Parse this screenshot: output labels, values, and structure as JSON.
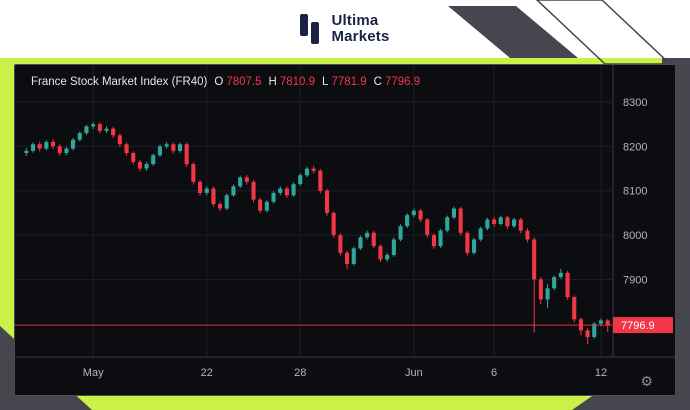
{
  "brand": {
    "line1": "Ultima",
    "line2": "Markets"
  },
  "legend": {
    "title": "France Stock Market Index (FR40)",
    "open_label": "O",
    "open": "7807.5",
    "high_label": "H",
    "high": "7810.9",
    "low_label": "L",
    "low": "7781.9",
    "close_label": "C",
    "close": "7796.9"
  },
  "icons": {
    "gear": "⚙"
  },
  "colors": {
    "up": "#2fa79c",
    "down": "#f23645",
    "accent_red": "#f23645",
    "axis_text": "#b2b5be",
    "grid": "#1b1e26",
    "axis_line": "#363a45",
    "panel_bg": "#0c0d10",
    "background_lime": "#c9f148",
    "decor_gray": "#46464e",
    "brand_navy": "#1b2446"
  },
  "chart_data": {
    "type": "candlestick",
    "title": "France Stock Market Index (FR40)",
    "symbol": "FR40",
    "last_price": 7796.9,
    "last_ohlc": {
      "open": 7807.5,
      "high": 7810.9,
      "low": 7781.9,
      "close": 7796.9
    },
    "ylim": [
      7725,
      8370
    ],
    "y_ticks": [
      8300,
      8200,
      8100,
      8000,
      7900
    ],
    "x_ticks": [
      {
        "index": 10,
        "label": "May"
      },
      {
        "index": 27,
        "label": "22"
      },
      {
        "index": 41,
        "label": "28"
      },
      {
        "index": 58,
        "label": "Jun"
      },
      {
        "index": 70,
        "label": "6"
      },
      {
        "index": 86,
        "label": "12"
      }
    ],
    "candles": [
      [
        8185,
        8196,
        8178,
        8190
      ],
      [
        8190,
        8209,
        8186,
        8205
      ],
      [
        8205,
        8211,
        8189,
        8195
      ],
      [
        8195,
        8214,
        8191,
        8210
      ],
      [
        8210,
        8216,
        8194,
        8200
      ],
      [
        8200,
        8205,
        8179,
        8185
      ],
      [
        8185,
        8199,
        8180,
        8195
      ],
      [
        8195,
        8219,
        8191,
        8215
      ],
      [
        8215,
        8234,
        8211,
        8230
      ],
      [
        8230,
        8249,
        8226,
        8245
      ],
      [
        8245,
        8255,
        8239,
        8250
      ],
      [
        8250,
        8254,
        8229,
        8235
      ],
      [
        8235,
        8245,
        8230,
        8240
      ],
      [
        8240,
        8244,
        8219,
        8225
      ],
      [
        8225,
        8229,
        8199,
        8205
      ],
      [
        8205,
        8209,
        8179,
        8185
      ],
      [
        8185,
        8189,
        8159,
        8165
      ],
      [
        8165,
        8169,
        8144,
        8150
      ],
      [
        8150,
        8165,
        8145,
        8160
      ],
      [
        8160,
        8184,
        8156,
        8180
      ],
      [
        8180,
        8204,
        8176,
        8200
      ],
      [
        8200,
        8210,
        8195,
        8205
      ],
      [
        8205,
        8209,
        8184,
        8190
      ],
      [
        8190,
        8209,
        8186,
        8205
      ],
      [
        8205,
        8209,
        8154,
        8160
      ],
      [
        8160,
        8164,
        8114,
        8120
      ],
      [
        8120,
        8124,
        8089,
        8095
      ],
      [
        8095,
        8110,
        8090,
        8105
      ],
      [
        8105,
        8109,
        8064,
        8070
      ],
      [
        8070,
        8075,
        8054,
        8060
      ],
      [
        8060,
        8094,
        8056,
        8090
      ],
      [
        8090,
        8114,
        8086,
        8110
      ],
      [
        8110,
        8134,
        8106,
        8130
      ],
      [
        8130,
        8135,
        8114,
        8120
      ],
      [
        8120,
        8124,
        8074,
        8080
      ],
      [
        8080,
        8084,
        8049,
        8055
      ],
      [
        8055,
        8079,
        8051,
        8075
      ],
      [
        8075,
        8099,
        8071,
        8095
      ],
      [
        8095,
        8110,
        8090,
        8105
      ],
      [
        8105,
        8109,
        8084,
        8090
      ],
      [
        8090,
        8119,
        8086,
        8115
      ],
      [
        8115,
        8139,
        8111,
        8135
      ],
      [
        8135,
        8154,
        8131,
        8150
      ],
      [
        8150,
        8156,
        8139,
        8145
      ],
      [
        8145,
        8149,
        8094,
        8100
      ],
      [
        8100,
        8104,
        8044,
        8050
      ],
      [
        8050,
        8054,
        7994,
        8000
      ],
      [
        8000,
        8004,
        7954,
        7960
      ],
      [
        7960,
        7965,
        7924,
        7935
      ],
      [
        7935,
        7974,
        7931,
        7970
      ],
      [
        7970,
        7999,
        7966,
        7995
      ],
      [
        7995,
        8010,
        7990,
        8005
      ],
      [
        8005,
        8009,
        7970,
        7975
      ],
      [
        7975,
        7979,
        7939,
        7945
      ],
      [
        7945,
        7960,
        7940,
        7955
      ],
      [
        7955,
        7994,
        7951,
        7990
      ],
      [
        7990,
        8024,
        7986,
        8020
      ],
      [
        8020,
        8049,
        8016,
        8045
      ],
      [
        8045,
        8060,
        8040,
        8055
      ],
      [
        8055,
        8059,
        8029,
        8035
      ],
      [
        8035,
        8039,
        7994,
        8000
      ],
      [
        8000,
        8004,
        7969,
        7975
      ],
      [
        7975,
        8014,
        7971,
        8010
      ],
      [
        8010,
        8044,
        8006,
        8040
      ],
      [
        8040,
        8064,
        8036,
        8060
      ],
      [
        8060,
        8064,
        7999,
        8005
      ],
      [
        8005,
        8009,
        7954,
        7960
      ],
      [
        7960,
        7994,
        7956,
        7990
      ],
      [
        7990,
        8019,
        7986,
        8015
      ],
      [
        8015,
        8039,
        8011,
        8035
      ],
      [
        8035,
        8040,
        8019,
        8025
      ],
      [
        8025,
        8044,
        8021,
        8040
      ],
      [
        8040,
        8044,
        8014,
        8020
      ],
      [
        8020,
        8039,
        8016,
        8035
      ],
      [
        8035,
        8039,
        8004,
        8010
      ],
      [
        8010,
        8015,
        7984,
        7990
      ],
      [
        7990,
        7995,
        7780,
        7900
      ],
      [
        7900,
        7905,
        7844,
        7855
      ],
      [
        7855,
        7889,
        7835,
        7880
      ],
      [
        7880,
        7909,
        7876,
        7905
      ],
      [
        7905,
        7924,
        7901,
        7915
      ],
      [
        7915,
        7919,
        7854,
        7860
      ],
      [
        7860,
        7864,
        7804,
        7810
      ],
      [
        7810,
        7814,
        7774,
        7785
      ],
      [
        7785,
        7790,
        7754,
        7770
      ],
      [
        7770,
        7804,
        7766,
        7800
      ],
      [
        7800,
        7812,
        7794,
        7807.5
      ],
      [
        7807.5,
        7810.9,
        7781.9,
        7796.9
      ]
    ]
  }
}
